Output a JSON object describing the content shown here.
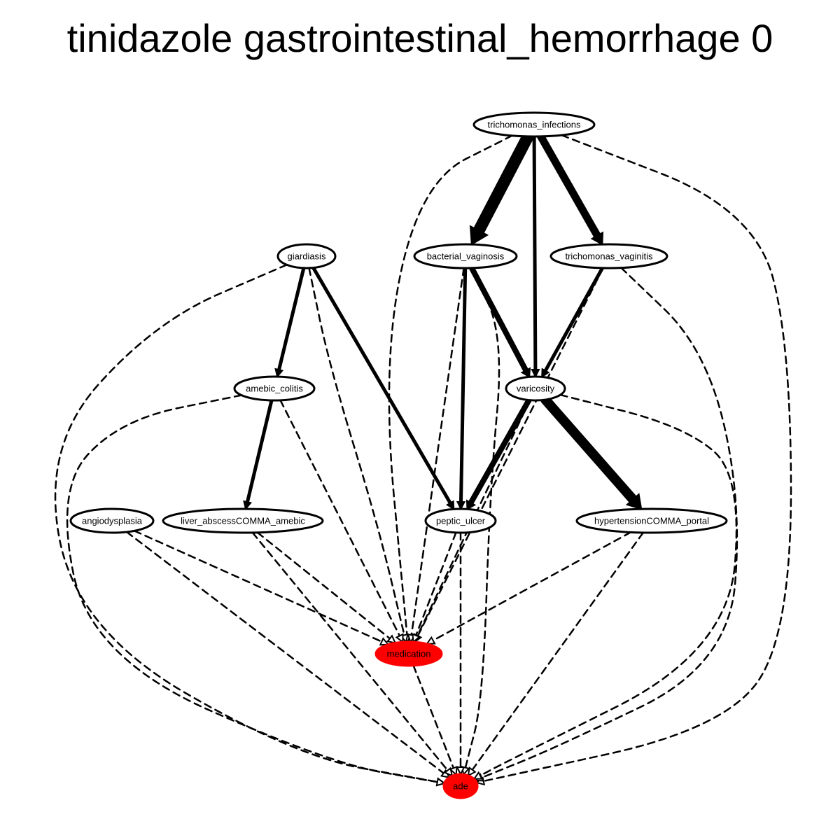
{
  "title": "tinidazole gastrointestinal_hemorrhage 0",
  "colors": {
    "highlight": "#ff0000",
    "stroke": "#000000",
    "background": "#ffffff"
  },
  "nodes": [
    {
      "id": "trichomonas_infections",
      "label": "trichomonas_infections",
      "highlight": false
    },
    {
      "id": "giardiasis",
      "label": "giardiasis",
      "highlight": false
    },
    {
      "id": "bacterial_vaginosis",
      "label": "bacterial_vaginosis",
      "highlight": false
    },
    {
      "id": "trichomonas_vaginitis",
      "label": "trichomonas_vaginitis",
      "highlight": false
    },
    {
      "id": "amebic_colitis",
      "label": "amebic_colitis",
      "highlight": false
    },
    {
      "id": "varicosity",
      "label": "varicosity",
      "highlight": false
    },
    {
      "id": "angiodysplasia",
      "label": "angiodysplasia",
      "highlight": false
    },
    {
      "id": "liver_abscess_amebic",
      "label": "liver_abscessCOMMA_amebic",
      "highlight": false
    },
    {
      "id": "peptic_ulcer",
      "label": "peptic_ulcer",
      "highlight": false
    },
    {
      "id": "hypertension_portal",
      "label": "hypertensionCOMMA_portal",
      "highlight": false
    },
    {
      "id": "medication",
      "label": "medication",
      "highlight": true
    },
    {
      "id": "ade",
      "label": "ade",
      "highlight": true
    }
  ],
  "edges": [
    {
      "from": "trichomonas_infections",
      "to": "bacterial_vaginosis",
      "style": "solid",
      "weight": 5
    },
    {
      "from": "trichomonas_infections",
      "to": "varicosity",
      "style": "solid",
      "weight": 1
    },
    {
      "from": "trichomonas_infections",
      "to": "trichomonas_vaginitis",
      "style": "solid",
      "weight": 3
    },
    {
      "from": "trichomonas_infections",
      "to": "medication",
      "style": "dashed",
      "weight": 0
    },
    {
      "from": "trichomonas_infections",
      "to": "ade",
      "style": "dashed",
      "weight": 0
    },
    {
      "from": "giardiasis",
      "to": "amebic_colitis",
      "style": "solid",
      "weight": 1
    },
    {
      "from": "giardiasis",
      "to": "peptic_ulcer",
      "style": "solid",
      "weight": 1
    },
    {
      "from": "giardiasis",
      "to": "medication",
      "style": "dashed",
      "weight": 0
    },
    {
      "from": "giardiasis",
      "to": "ade",
      "style": "dashed",
      "weight": 0
    },
    {
      "from": "bacterial_vaginosis",
      "to": "varicosity",
      "style": "solid",
      "weight": 2
    },
    {
      "from": "bacterial_vaginosis",
      "to": "peptic_ulcer",
      "style": "solid",
      "weight": 1
    },
    {
      "from": "bacterial_vaginosis",
      "to": "medication",
      "style": "dashed",
      "weight": 0
    },
    {
      "from": "bacterial_vaginosis",
      "to": "ade",
      "style": "dashed",
      "weight": 0
    },
    {
      "from": "trichomonas_vaginitis",
      "to": "varicosity",
      "style": "solid",
      "weight": 1
    },
    {
      "from": "trichomonas_vaginitis",
      "to": "medication",
      "style": "dashed",
      "weight": 0
    },
    {
      "from": "trichomonas_vaginitis",
      "to": "ade",
      "style": "dashed",
      "weight": 0
    },
    {
      "from": "amebic_colitis",
      "to": "liver_abscess_amebic",
      "style": "solid",
      "weight": 1
    },
    {
      "from": "amebic_colitis",
      "to": "medication",
      "style": "dashed",
      "weight": 0
    },
    {
      "from": "amebic_colitis",
      "to": "ade",
      "style": "dashed",
      "weight": 0
    },
    {
      "from": "varicosity",
      "to": "peptic_ulcer",
      "style": "solid",
      "weight": 2
    },
    {
      "from": "varicosity",
      "to": "hypertension_portal",
      "style": "solid",
      "weight": 4
    },
    {
      "from": "varicosity",
      "to": "medication",
      "style": "dashed",
      "weight": 0
    },
    {
      "from": "varicosity",
      "to": "ade",
      "style": "dashed",
      "weight": 0
    },
    {
      "from": "angiodysplasia",
      "to": "medication",
      "style": "dashed",
      "weight": 0
    },
    {
      "from": "angiodysplasia",
      "to": "ade",
      "style": "dashed",
      "weight": 0
    },
    {
      "from": "liver_abscess_amebic",
      "to": "medication",
      "style": "dashed",
      "weight": 0
    },
    {
      "from": "liver_abscess_amebic",
      "to": "ade",
      "style": "dashed",
      "weight": 0
    },
    {
      "from": "peptic_ulcer",
      "to": "medication",
      "style": "dashed",
      "weight": 0
    },
    {
      "from": "peptic_ulcer",
      "to": "ade",
      "style": "dashed",
      "weight": 0
    },
    {
      "from": "hypertension_portal",
      "to": "medication",
      "style": "dashed",
      "weight": 0
    },
    {
      "from": "hypertension_portal",
      "to": "ade",
      "style": "dashed",
      "weight": 0
    },
    {
      "from": "medication",
      "to": "ade",
      "style": "dashed",
      "weight": 0
    }
  ]
}
